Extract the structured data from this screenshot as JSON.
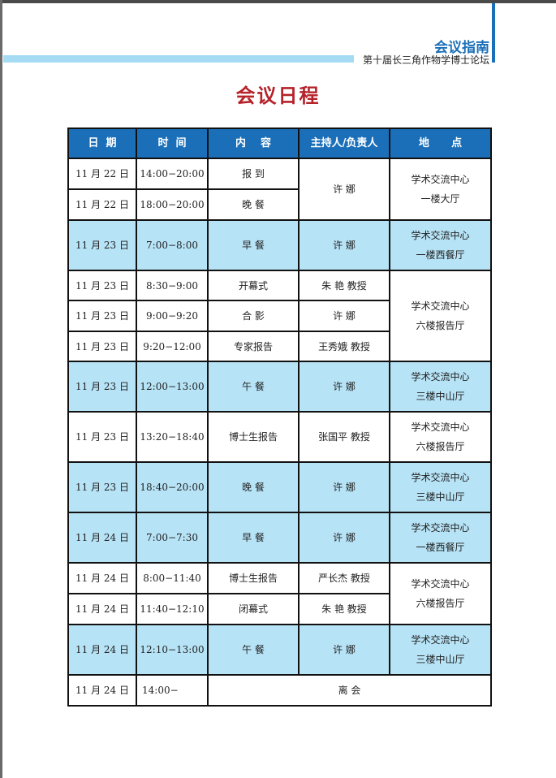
{
  "header": {
    "guide": "会议指南",
    "forum": "第十届长三角作物学博士论坛"
  },
  "title": "会议日程",
  "colors": {
    "accent": "#1b6fb8",
    "highlight": "#b7e3f6",
    "title": "#b5222a"
  },
  "columns": [
    "日  期",
    "时  间",
    "内    容",
    "主持人/负责人",
    "地      点"
  ],
  "rows": [
    {
      "date": "11 月 22 日",
      "time": "14:00−20:00",
      "content": "报  到",
      "host": "许  娜",
      "place": "学术交流中心\n一楼大厅"
    },
    {
      "date": "11 月 22 日",
      "time": "18:00−20:00",
      "content": "晚  餐"
    },
    {
      "date": "11 月 23 日",
      "time": "7:00−8:00",
      "content": "早  餐",
      "host": "许  娜",
      "place": "学术交流中心\n一楼西餐厅"
    },
    {
      "date": "11 月 23 日",
      "time": "8:30−9:00",
      "content": "开幕式",
      "host": "朱  艳 教授",
      "place": "学术交流中心\n六楼报告厅"
    },
    {
      "date": "11 月 23 日",
      "time": "9:00−9:20",
      "content": "合  影",
      "host": "许  娜"
    },
    {
      "date": "11 月 23 日",
      "time": "9:20−12:00",
      "content": "专家报告",
      "host": "王秀娥 教授"
    },
    {
      "date": "11 月 23 日",
      "time": "12:00−13:00",
      "content": "午  餐",
      "host": "许  娜",
      "place": "学术交流中心\n三楼中山厅"
    },
    {
      "date": "11 月 23 日",
      "time": "13:20−18:40",
      "content": "博士生报告",
      "host": "张国平 教授",
      "place": "学术交流中心\n六楼报告厅"
    },
    {
      "date": "11 月 23 日",
      "time": "18:40−20:00",
      "content": "晚  餐",
      "host": "许  娜",
      "place": "学术交流中心\n三楼中山厅"
    },
    {
      "date": "11 月 24 日",
      "time": "7:00−7:30",
      "content": "早  餐",
      "host": "许  娜",
      "place": "学术交流中心\n一楼西餐厅"
    },
    {
      "date": "11 月 24 日",
      "time": "8:00−11:40",
      "content": "博士生报告",
      "host": "严长杰 教授",
      "place": "学术交流中心\n六楼报告厅"
    },
    {
      "date": "11 月 24 日",
      "time": "11:40−12:10",
      "content": "闭幕式",
      "host": "朱  艳 教授"
    },
    {
      "date": "11 月 24 日",
      "time": "12:10−13:00",
      "content": "午  餐",
      "host": "许  娜",
      "place": "学术交流中心\n三楼中山厅"
    },
    {
      "date": "11 月 24 日",
      "time": "14:00−",
      "content": "离  会"
    }
  ]
}
